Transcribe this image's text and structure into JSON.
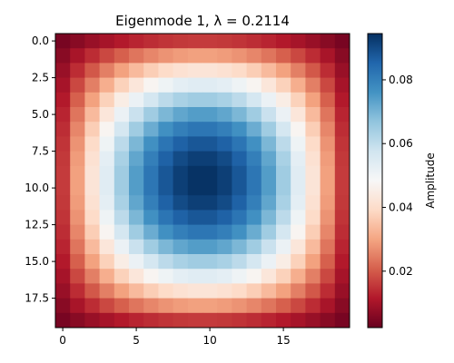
{
  "chart_data": {
    "type": "heatmap",
    "title": "Eigenmode 1, λ = 0.2114",
    "xlabel": "",
    "ylabel": "",
    "grid": false,
    "n_rows": 20,
    "n_cols": 20,
    "x_ticks": [
      0,
      5,
      10,
      15
    ],
    "x_tick_labels": [
      "0",
      "5",
      "10",
      "15"
    ],
    "y_ticks": [
      0,
      2.5,
      5,
      7.5,
      10,
      12.5,
      15,
      17.5
    ],
    "y_tick_labels": [
      "0.0",
      "2.5",
      "5.0",
      "7.5",
      "10.0",
      "12.5",
      "15.0",
      "17.5"
    ],
    "y_axis_inverted": true,
    "colormap": "RdBu",
    "value_range": [
      0.0023,
      0.0945
    ],
    "peak_location": [
      9.5,
      9.5
    ],
    "profile": "sin(pi*(i+1)/21) * sin(pi*(j+1)/21) scaled to value_range",
    "colorbar": {
      "label": "Amplitude",
      "ticks": [
        0.02,
        0.04,
        0.06,
        0.08
      ],
      "tick_labels": [
        "0.02",
        "0.04",
        "0.06",
        "0.08"
      ]
    }
  }
}
